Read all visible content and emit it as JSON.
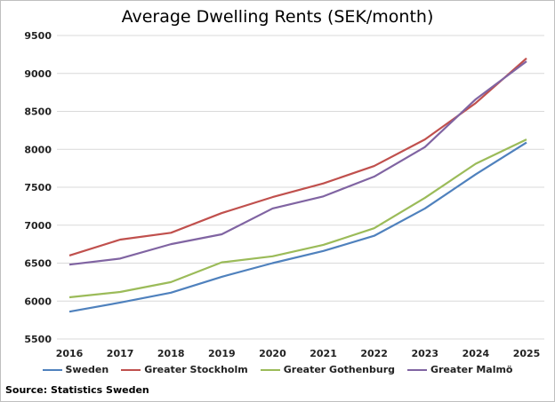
{
  "chart_data": {
    "type": "line",
    "title": "Average Dwelling Rents (SEK/month)",
    "xlabel": "",
    "ylabel": "",
    "categories": [
      "2016",
      "2017",
      "2018",
      "2019",
      "2020",
      "2021",
      "2022",
      "2023",
      "2024",
      "2025"
    ],
    "ylim": [
      5500,
      9500
    ],
    "ytick_step": 500,
    "grid": true,
    "legend_position": "bottom",
    "series": [
      {
        "name": "Sweden",
        "color": "#4f81bd",
        "values": [
          5860,
          5980,
          6110,
          6320,
          6500,
          6660,
          6860,
          7220,
          7670,
          8090
        ]
      },
      {
        "name": "Greater Stockholm",
        "color": "#c0504d",
        "values": [
          6600,
          6810,
          6900,
          7160,
          7370,
          7550,
          7780,
          8130,
          8610,
          9200
        ]
      },
      {
        "name": "Greater Gothenburg",
        "color": "#9bbb59",
        "values": [
          6050,
          6120,
          6250,
          6510,
          6590,
          6740,
          6960,
          7360,
          7810,
          8130
        ]
      },
      {
        "name": "Greater Malmö",
        "color": "#8064a2",
        "values": [
          6480,
          6560,
          6750,
          6880,
          7220,
          7380,
          7640,
          8030,
          8660,
          9160
        ]
      }
    ],
    "source": "Source: Statistics Sweden"
  }
}
